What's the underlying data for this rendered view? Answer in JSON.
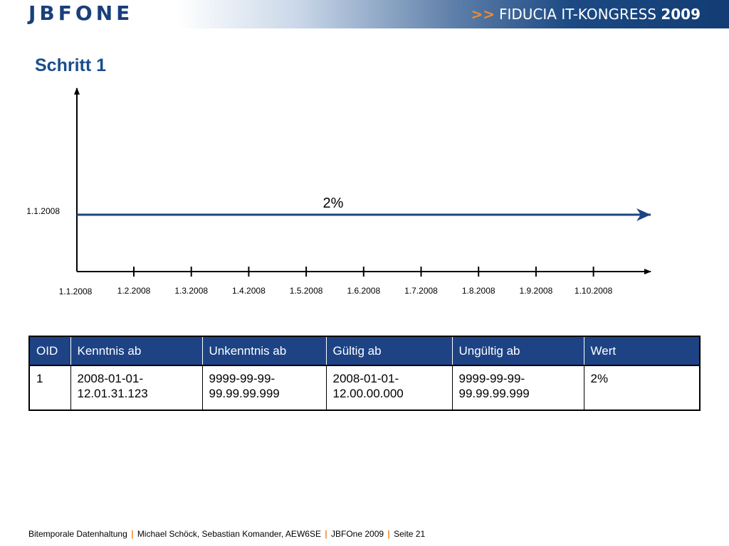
{
  "header": {
    "logo_text": "JBFONE",
    "congress_arrows": ">>",
    "congress_text": "FIDUCIA IT-KONGRESS",
    "congress_year": "2009"
  },
  "title": "Schritt 1",
  "chart_data": {
    "type": "line",
    "x_ticks": [
      "1.1.2008",
      "1.2.2008",
      "1.3.2008",
      "1.4.2008",
      "1.5.2008",
      "1.6.2008",
      "1.7.2008",
      "1.8.2008",
      "1.9.2008",
      "1.10.2008"
    ],
    "y_ticks": [
      "1.1.2008"
    ],
    "series": [
      {
        "value_label": "2%",
        "from_x": "1.1.2008",
        "y": "1.1.2008",
        "color": "#1d4385"
      }
    ],
    "axis_color": "#000000"
  },
  "table": {
    "headers": [
      "OID",
      "Kenntnis ab",
      "Unkenntnis ab",
      "Gültig ab",
      "Ungültig ab",
      "Wert"
    ],
    "rows": [
      {
        "oid": "1",
        "kenntnis_ab": [
          "2008-01-01-",
          "12.01.31.123"
        ],
        "unkenntnis_ab": [
          "9999-99-99-",
          "99.99.99.999"
        ],
        "gueltig_ab": [
          "2008-01-01-",
          "12.00.00.000"
        ],
        "ungueltig_ab": [
          "9999-99-99-",
          "99.99.99.999"
        ],
        "wert": "2%"
      }
    ],
    "header_color": "#1d4385"
  },
  "footer": {
    "part1": "Bitemporale Datenhaltung",
    "part2": "Michael Schöck, Sebastian Komander, AEW6SE",
    "part3": "JBFOne 2009",
    "part4": "Seite 21",
    "separator": "|"
  }
}
